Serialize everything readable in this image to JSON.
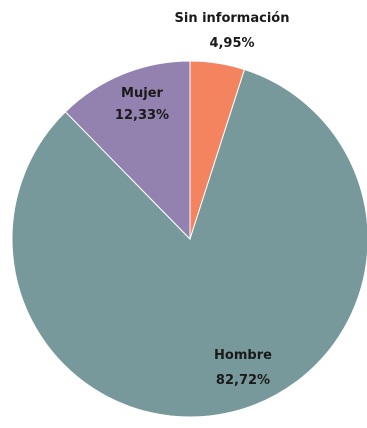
{
  "chart_data": {
    "type": "pie",
    "title": "",
    "slices": [
      {
        "label": "Sin información",
        "value": 4.95,
        "display": "4,95%",
        "color": "#F4845F"
      },
      {
        "label": "Hombre",
        "value": 82.72,
        "display": "82,72%",
        "color": "#77999B"
      },
      {
        "label": "Mujer",
        "value": 12.33,
        "display": "12,33%",
        "color": "#9381B0"
      }
    ],
    "start_angle_deg": 0,
    "direction": "clockwise",
    "legend": "none",
    "labels": "name and percentage on or beside each slice"
  }
}
